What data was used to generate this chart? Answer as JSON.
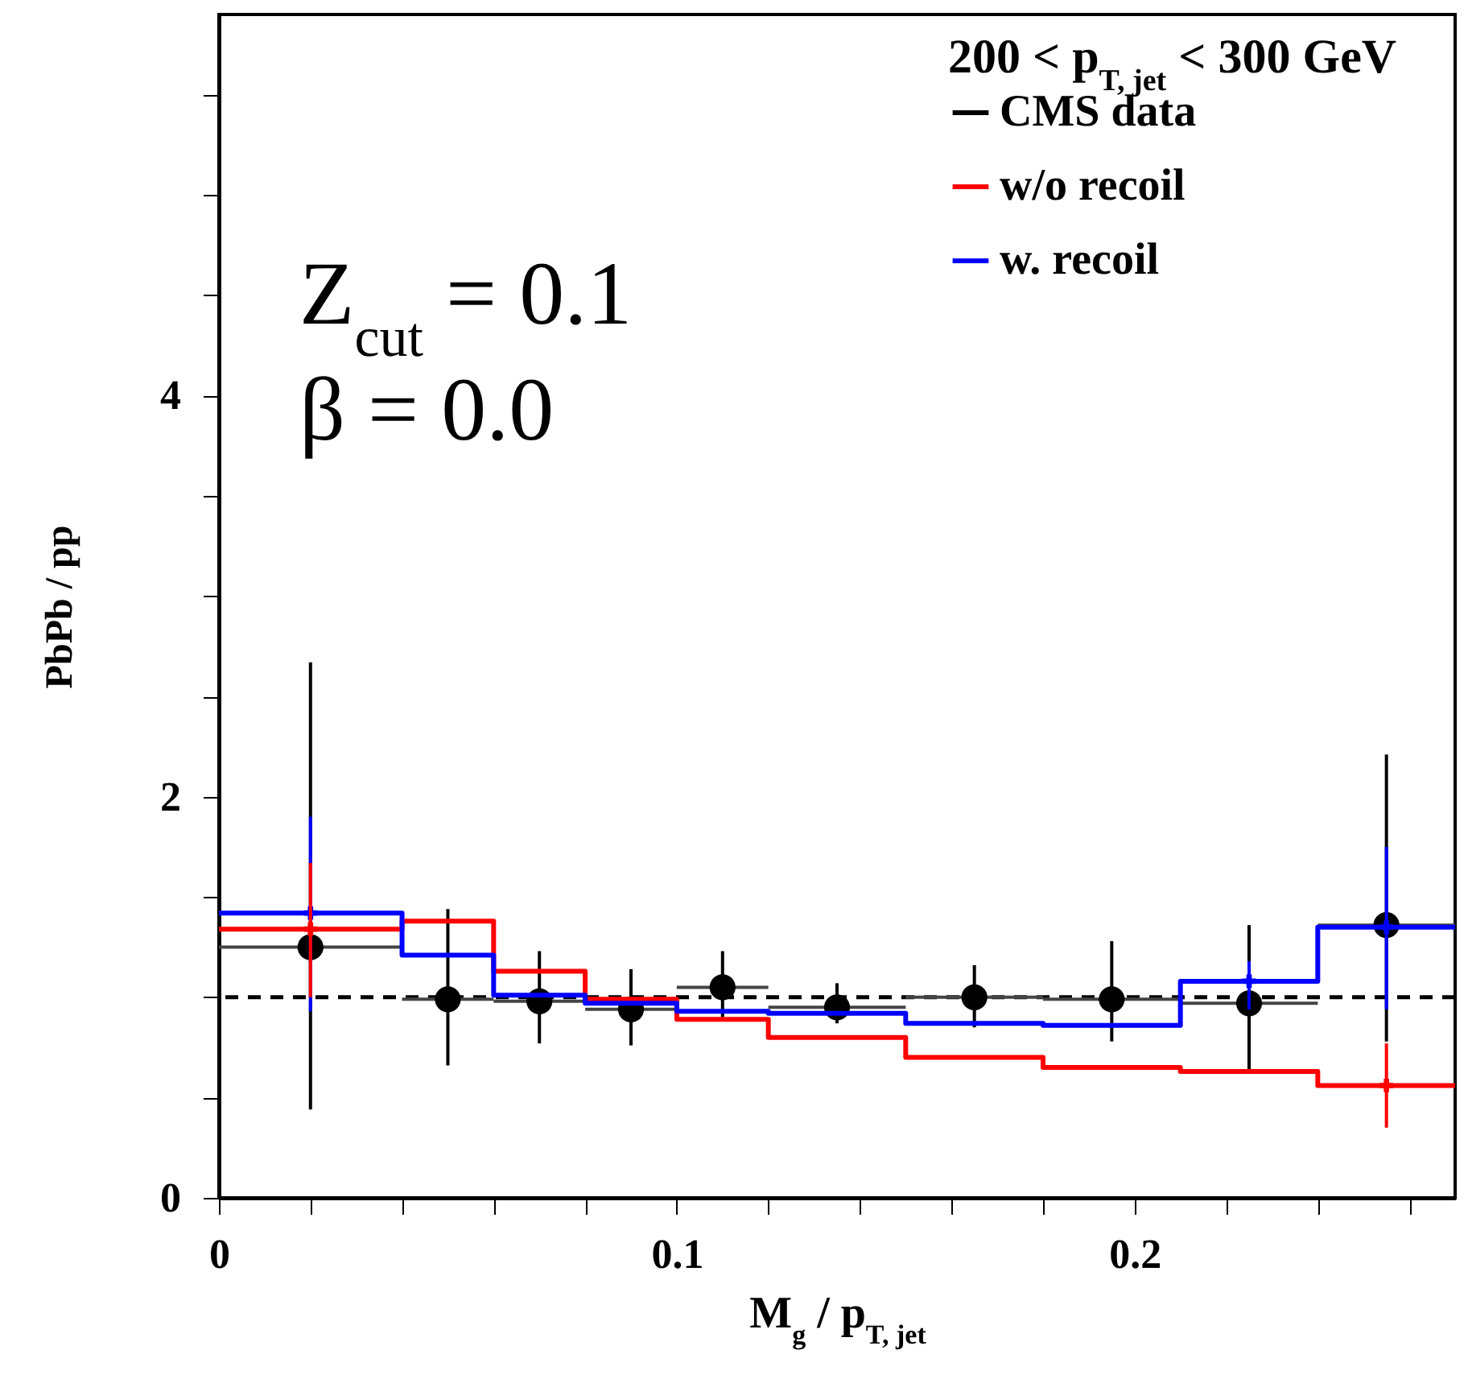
{
  "chart_data": {
    "type": "histogram",
    "xlabel": "M$_{g}$ / p$_{T, jet}$",
    "ylabel": "PbPb / pp",
    "legend_title": "200 < p$_{T, jet}$ < 300 GeV",
    "annotations": [
      "Z$_{cut}$ = 0.1",
      "β = 0.0"
    ],
    "xlim": [
      0,
      0.27
    ],
    "xticks": [
      0,
      {
        "value": 0.02,
        "label": null
      },
      {
        "value": 0.04,
        "label": null
      },
      {
        "value": 0.06,
        "label": null
      },
      {
        "value": 0.08,
        "label": null
      },
      0.1,
      {
        "value": 0.12,
        "label": null
      },
      {
        "value": 0.14,
        "label": null
      },
      {
        "value": 0.16,
        "label": null
      },
      {
        "value": 0.18,
        "label": null
      },
      0.2,
      {
        "value": 0.22,
        "label": null
      },
      {
        "value": 0.24,
        "label": null
      },
      {
        "value": 0.26,
        "label": null
      }
    ],
    "ylim": [
      0,
      5.9
    ],
    "yticks": [
      0,
      {
        "value": 0.5,
        "label": null
      },
      {
        "value": 1,
        "label": null
      },
      {
        "value": 1.5,
        "label": null
      },
      2,
      {
        "value": 2.5,
        "label": null
      },
      {
        "value": 3,
        "label": null
      },
      {
        "value": 3.5,
        "label": null
      },
      4,
      {
        "value": 4.5,
        "label": null
      },
      {
        "value": 5,
        "label": null
      },
      {
        "value": 5.5,
        "label": null
      }
    ],
    "legend": "top right",
    "grid": false,
    "ref_lines": [
      {
        "axis": "y",
        "value": 1,
        "color": "#000000",
        "line_style": "dashed"
      }
    ],
    "series": [
      {
        "name": "CMS data",
        "type": "scatter",
        "marker": "circle",
        "color": "#000000",
        "x": [
          0.02,
          0.05,
          0.07,
          0.09,
          0.11,
          0.135,
          0.165,
          0.195,
          0.225,
          0.255
        ],
        "values": [
          1.25,
          0.99,
          0.98,
          0.94,
          1.05,
          0.95,
          1.0,
          0.99,
          0.97,
          1.36
        ],
        "errors": [
          [
            0.44,
            2.67
          ],
          [
            0.66,
            1.44
          ],
          [
            0.77,
            1.23
          ],
          [
            0.76,
            1.14
          ],
          [
            0.9,
            1.23
          ],
          [
            0.87,
            1.07
          ],
          [
            0.85,
            1.16
          ],
          [
            0.78,
            1.28
          ],
          [
            0.64,
            1.36
          ],
          [
            0.78,
            2.21
          ]
        ],
        "xerrors": [
          0.02,
          0.01,
          0.01,
          0.01,
          0.01,
          0.015,
          0.015,
          0.015,
          0.015,
          0.015
        ]
      },
      {
        "name": "w/o recoil",
        "color": "#ff0000",
        "bins": [
          0,
          0.04,
          0.06,
          0.08,
          0.1,
          0.12,
          0.15,
          0.18,
          0.21,
          0.24,
          0.27
        ],
        "values": [
          1.34,
          1.38,
          1.13,
          0.99,
          0.89,
          0.8,
          0.7,
          0.65,
          0.63,
          0.56
        ]
      },
      {
        "name": "w. recoil",
        "color": "#0000ff",
        "bins": [
          0,
          0.04,
          0.06,
          0.08,
          0.1,
          0.12,
          0.15,
          0.18,
          0.21,
          0.24,
          0.27
        ],
        "values": [
          1.42,
          1.21,
          1.01,
          0.97,
          0.93,
          0.92,
          0.87,
          0.86,
          1.08,
          1.35
        ]
      },
      {
        "type": "scatter",
        "marker": "cross",
        "color": "#0000ff",
        "x": [
          0.02,
          0.225,
          0.255
        ],
        "values": [
          1.42,
          1.08,
          1.35
        ],
        "errors": [
          [
            0.93,
            1.9
          ],
          [
            0.94,
            1.18
          ],
          [
            0.94,
            1.75
          ]
        ]
      },
      {
        "type": "scatter",
        "marker": "cross",
        "color": "#ff0000",
        "x": [
          0.02,
          0.255
        ],
        "values": [
          1.34,
          0.56
        ],
        "errors": [
          [
            1.0,
            1.67
          ],
          [
            0.35,
            0.77
          ]
        ]
      }
    ]
  }
}
